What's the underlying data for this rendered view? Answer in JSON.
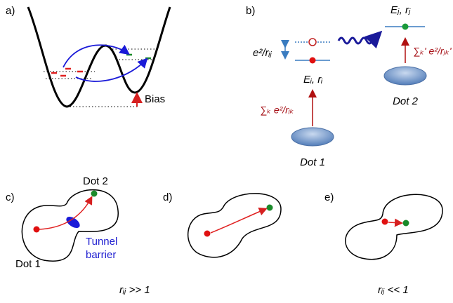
{
  "panel_a": {
    "label": "a)",
    "bias": "Bias"
  },
  "panel_b": {
    "label": "b)",
    "coulomb": "e²/rᵢⱼ",
    "state_i": "Eᵢ, rᵢ",
    "state_j": "Eⱼ, rⱼ",
    "sum_j": "∑ₖ' e²/rⱼₖ'",
    "sum_i": "∑ₖ e²/rᵢₖ",
    "dot1": "Dot 1",
    "dot2": "Dot 2"
  },
  "panel_c": {
    "label": "c)",
    "dot2": "Dot 2",
    "barrier": [
      "Tunnel",
      "barrier"
    ],
    "dot1": "Dot 1",
    "regime": "rᵢⱼ >> 1"
  },
  "panel_d": {
    "label": "d)"
  },
  "panel_e": {
    "label": "e)",
    "regime": "rᵢⱼ << 1"
  }
}
